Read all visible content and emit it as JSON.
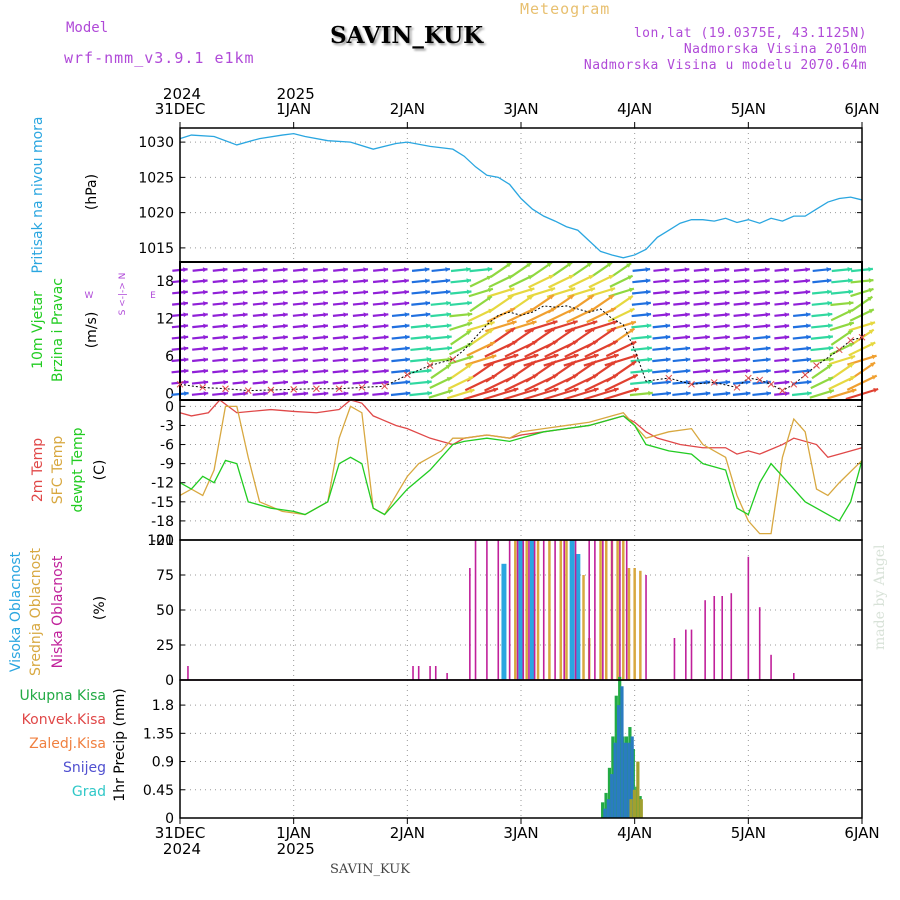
{
  "header": {
    "model_label": "Model",
    "model_version": "wrf-nmm_v3.9.1  e1km",
    "station": "SAVIN_KUK",
    "meteogram": "Meteogram",
    "lonlat": "lon,lat (19.0375E, 43.1125N)",
    "elevation": "Nadmorska Visina 2010m",
    "model_elevation": "Nadmorska Visina u modelu 2070.64m",
    "credit": "made by Angel",
    "footer_station": "SAVIN_KUK"
  },
  "time_axis": {
    "ticks": [
      {
        "label": "31DEC",
        "year": "2024"
      },
      {
        "label": "1JAN",
        "year": "2025"
      },
      {
        "label": "2JAN",
        "year": ""
      },
      {
        "label": "3JAN",
        "year": ""
      },
      {
        "label": "4JAN",
        "year": ""
      },
      {
        "label": "5JAN",
        "year": ""
      },
      {
        "label": "6JAN",
        "year": ""
      }
    ],
    "range_days": [
      0,
      6
    ]
  },
  "colors": {
    "pressure": "#2aa6e0",
    "temp2m": "#e04848",
    "sfc": "#d8a840",
    "dewpt": "#22cc22",
    "cloud_high": "#2aa6e0",
    "cloud_mid": "#d8a840",
    "cloud_low": "#c0209a",
    "precip_total": "#22aa44",
    "precip_conv": "#e04848",
    "precip_frozen": "#f08040",
    "precip_snow": "#5050d0",
    "precip_hail": "#30c8c8",
    "wind_label_color": "#22cc22"
  },
  "chart_data": [
    {
      "type": "line",
      "title": "",
      "ylabel_lines": [
        "Pritisak na nivou mora"
      ],
      "unit": "(hPa)",
      "ylim": [
        1013,
        1032
      ],
      "yticks": [
        1015,
        1020,
        1025,
        1030
      ],
      "series": [
        {
          "name": "Pritisak na nivou mora",
          "x": [
            0,
            0.1,
            0.3,
            0.5,
            0.7,
            0.9,
            1.0,
            1.1,
            1.3,
            1.5,
            1.7,
            1.9,
            2.0,
            2.2,
            2.4,
            2.5,
            2.6,
            2.7,
            2.8,
            2.9,
            3.0,
            3.1,
            3.2,
            3.3,
            3.4,
            3.5,
            3.6,
            3.7,
            3.8,
            3.9,
            4.0,
            4.1,
            4.2,
            4.3,
            4.4,
            4.5,
            4.6,
            4.7,
            4.8,
            4.9,
            5.0,
            5.1,
            5.2,
            5.3,
            5.4,
            5.5,
            5.6,
            5.7,
            5.8,
            5.9,
            6.0
          ],
          "y": [
            1030.5,
            1031,
            1030.8,
            1029.6,
            1030.5,
            1031,
            1031.2,
            1030.8,
            1030.2,
            1030,
            1029,
            1029.8,
            1030,
            1029.4,
            1029,
            1028,
            1026.5,
            1025.3,
            1025,
            1024,
            1022,
            1020.5,
            1019.5,
            1018.8,
            1018,
            1017.5,
            1016,
            1014.5,
            1014,
            1013.6,
            1014,
            1014.8,
            1016.5,
            1017.5,
            1018.5,
            1019,
            1019,
            1018.8,
            1019.2,
            1018.6,
            1019,
            1018.5,
            1019.2,
            1018.8,
            1019.5,
            1019.5,
            1020.5,
            1021.5,
            1022,
            1022.2,
            1021.8
          ]
        }
      ]
    },
    {
      "type": "vector",
      "title": "",
      "ylabel_lines": [
        "10m Vjetar",
        "Brzina i Pravac"
      ],
      "unit": "(m/s)",
      "compass_label": "S <-|-> N",
      "compass_we": [
        "W",
        "E"
      ],
      "ylim": [
        -1,
        21
      ],
      "yticks": [
        0,
        6,
        12,
        18
      ],
      "speed_series": {
        "x": [
          0,
          0.2,
          0.4,
          0.6,
          0.8,
          1.0,
          1.2,
          1.4,
          1.6,
          1.8,
          2.0,
          2.2,
          2.4,
          2.5,
          2.6,
          2.7,
          2.8,
          2.9,
          3.0,
          3.1,
          3.2,
          3.3,
          3.4,
          3.5,
          3.6,
          3.7,
          3.8,
          3.9,
          4.0,
          4.1,
          4.3,
          4.5,
          4.7,
          4.9,
          5.0,
          5.1,
          5.2,
          5.3,
          5.4,
          5.5,
          5.6,
          5.8,
          5.9,
          6.0
        ],
        "y": [
          1.5,
          1,
          0.8,
          0.5,
          0.6,
          0.7,
          0.8,
          0.8,
          1,
          1.2,
          3,
          4.5,
          5.5,
          7,
          9,
          11,
          12.5,
          13,
          12.5,
          13,
          14,
          13.8,
          14,
          13.5,
          13,
          13.5,
          12,
          11,
          7,
          2,
          2.5,
          1.5,
          1.8,
          1,
          2.5,
          2.2,
          1.5,
          0.5,
          1.5,
          3,
          4.5,
          7,
          8.5,
          9
        ]
      }
    },
    {
      "type": "line",
      "title": "",
      "ylabel_lines": [
        "2m Temp",
        "SFC Temp",
        "dewpt Temp"
      ],
      "unit": "(C)",
      "ylim": [
        -21,
        1
      ],
      "yticks": [
        0,
        -3,
        -6,
        -9,
        -12,
        -15,
        -18,
        -21
      ],
      "series": [
        {
          "name": "2m Temp",
          "x": [
            0,
            0.1,
            0.25,
            0.35,
            0.5,
            0.8,
            1.0,
            1.2,
            1.4,
            1.5,
            1.6,
            1.7,
            1.9,
            2.0,
            2.2,
            2.3,
            2.4,
            2.5,
            2.7,
            2.9,
            3.0,
            3.2,
            3.4,
            3.6,
            3.8,
            3.9,
            4.0,
            4.1,
            4.2,
            4.4,
            4.6,
            4.8,
            4.9,
            5.0,
            5.1,
            5.3,
            5.4,
            5.6,
            5.7,
            5.8,
            6.0
          ],
          "y": [
            -1,
            -1.5,
            -1,
            1,
            -1,
            -0.5,
            -0.8,
            -1,
            -0.5,
            1,
            0.5,
            -1.5,
            -3,
            -3.5,
            -5,
            -5.5,
            -6,
            -5,
            -4.5,
            -5,
            -4.5,
            -4,
            -3.5,
            -3,
            -2,
            -1.5,
            -2.5,
            -4,
            -5,
            -6,
            -6.5,
            -6.5,
            -7.5,
            -7,
            -7.5,
            -6,
            -5,
            -6,
            -8,
            -7.5,
            -6.5
          ]
        },
        {
          "name": "SFC Temp",
          "x": [
            0,
            0.1,
            0.2,
            0.3,
            0.4,
            0.5,
            0.6,
            0.7,
            0.9,
            1.1,
            1.3,
            1.4,
            1.5,
            1.6,
            1.7,
            1.8,
            1.9,
            2.0,
            2.1,
            2.3,
            2.4,
            2.5,
            2.7,
            2.9,
            3.0,
            3.2,
            3.4,
            3.6,
            3.8,
            3.9,
            4.0,
            4.1,
            4.3,
            4.5,
            4.6,
            4.8,
            4.9,
            5.0,
            5.1,
            5.2,
            5.3,
            5.4,
            5.5,
            5.6,
            5.7,
            5.8,
            6.0
          ],
          "y": [
            -14,
            -13,
            -14,
            -10,
            0,
            0,
            -8,
            -15,
            -16.5,
            -17,
            -15,
            -5,
            0,
            -1,
            -16,
            -17,
            -14,
            -11,
            -9,
            -7,
            -5,
            -5,
            -4.5,
            -5,
            -4,
            -3.5,
            -3,
            -2.5,
            -1.5,
            -1,
            -3,
            -5,
            -4,
            -3.5,
            -6,
            -8,
            -14,
            -18,
            -20,
            -20,
            -8,
            -2,
            -4,
            -13,
            -14,
            -12,
            -8.5
          ]
        },
        {
          "name": "dewpt Temp",
          "x": [
            0,
            0.1,
            0.2,
            0.3,
            0.4,
            0.5,
            0.6,
            0.8,
            1.0,
            1.1,
            1.2,
            1.3,
            1.4,
            1.5,
            1.6,
            1.7,
            1.8,
            1.9,
            2.0,
            2.2,
            2.4,
            2.5,
            2.7,
            2.9,
            3.0,
            3.2,
            3.4,
            3.6,
            3.8,
            3.9,
            4.0,
            4.1,
            4.3,
            4.5,
            4.6,
            4.8,
            4.9,
            5.0,
            5.1,
            5.2,
            5.3,
            5.4,
            5.5,
            5.6,
            5.7,
            5.8,
            5.9,
            6.0
          ],
          "y": [
            -12,
            -13,
            -11,
            -12,
            -8.5,
            -9,
            -15,
            -16,
            -16.5,
            -17,
            -16,
            -15,
            -9,
            -8,
            -9,
            -16,
            -17,
            -15,
            -13,
            -10,
            -6,
            -5.5,
            -5,
            -5.5,
            -5,
            -4,
            -3.5,
            -3,
            -2,
            -1.5,
            -3,
            -6,
            -7,
            -7.5,
            -9,
            -10,
            -16,
            -17,
            -12,
            -9,
            -11,
            -13,
            -15,
            -16,
            -17,
            -18,
            -15,
            -8.5
          ]
        }
      ]
    },
    {
      "type": "bar",
      "title": "",
      "ylabel_lines": [
        "Visoka Oblacnost",
        "Srednja Oblacnost",
        "Niska Oblacnost"
      ],
      "unit": "(%)",
      "ylim": [
        0,
        100
      ],
      "yticks": [
        0,
        25,
        50,
        75,
        100
      ],
      "series": [
        {
          "name": "Visoka Oblacnost",
          "x": [
            2.85,
            3.0,
            3.1,
            3.45,
            3.5
          ],
          "y": [
            83,
            100,
            100,
            100,
            90
          ]
        },
        {
          "name": "Srednja Oblacnost",
          "x": [
            2.95,
            3.05,
            3.15,
            3.25,
            3.35,
            3.4,
            3.55,
            3.6,
            3.7,
            3.75,
            3.8,
            3.85,
            3.9,
            3.95,
            4.0,
            4.05
          ],
          "y": [
            100,
            100,
            100,
            100,
            100,
            100,
            75,
            30,
            100,
            100,
            100,
            100,
            100,
            80,
            80,
            78
          ]
        },
        {
          "name": "Niska Oblacnost",
          "x": [
            0.07,
            2.05,
            2.1,
            2.2,
            2.25,
            2.35,
            2.55,
            2.6,
            2.7,
            2.8,
            2.9,
            2.97,
            3.02,
            3.07,
            3.12,
            3.2,
            3.3,
            3.38,
            3.48,
            3.6,
            3.65,
            3.72,
            3.8,
            3.87,
            3.93,
            4.1,
            4.35,
            4.45,
            4.5,
            4.62,
            4.7,
            4.77,
            4.85,
            5.0,
            5.1,
            5.2,
            5.4
          ],
          "y": [
            10,
            10,
            10,
            10,
            10,
            5,
            80,
            100,
            100,
            100,
            100,
            100,
            100,
            100,
            100,
            100,
            100,
            100,
            100,
            100,
            100,
            100,
            100,
            100,
            100,
            75,
            30,
            36,
            36,
            57,
            60,
            60,
            62,
            88,
            52,
            18,
            5
          ]
        }
      ]
    },
    {
      "type": "bar",
      "title": "",
      "ylabel": "1hr Precip (mm)",
      "legend_labels": [
        "Ukupna Kisa",
        "Konvek.Kisa",
        "Zaledj.Kisa",
        "Snijeg",
        "Grad"
      ],
      "ylim": [
        0,
        2.2
      ],
      "yticks": [
        0,
        0.45,
        0.9,
        1.35,
        1.8
      ],
      "yticklabels": [
        "0",
        "0.45",
        "0.9",
        "1.35",
        "1.8"
      ],
      "series": [
        {
          "name": "Ukupna Kisa",
          "x": [
            3.72,
            3.75,
            3.78,
            3.81,
            3.84,
            3.87,
            3.9,
            3.93,
            3.96,
            3.99,
            4.02,
            4.05
          ],
          "y": [
            0.25,
            0.4,
            0.8,
            1.3,
            1.95,
            2.25,
            1.3,
            1.3,
            1.45,
            1.1,
            0.5,
            0.35
          ]
        },
        {
          "name": "Snijeg",
          "x": [
            3.74,
            3.77,
            3.8,
            3.83,
            3.86,
            3.89,
            3.92,
            3.95,
            3.98
          ],
          "y": [
            0.15,
            0.3,
            0.7,
            1.2,
            1.8,
            2.1,
            1.2,
            1.2,
            1.3
          ]
        },
        {
          "name": "Zaledj.Kisa",
          "x": [
            3.97,
            4.0,
            4.03,
            4.06
          ],
          "y": [
            0.3,
            0.45,
            0.9,
            0.3
          ]
        }
      ]
    }
  ]
}
